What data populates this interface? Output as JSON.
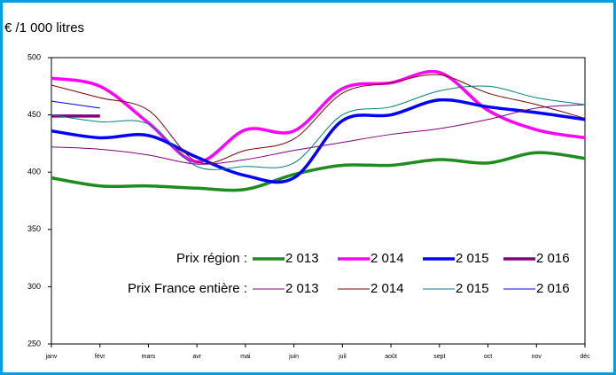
{
  "chart_data": {
    "type": "line",
    "title": "€ /1 000 litres",
    "categories": [
      "janv",
      "févr",
      "mars",
      "avr",
      "mai",
      "juin",
      "juil",
      "août",
      "sept",
      "oct",
      "nov",
      "déc"
    ],
    "ylim": [
      250,
      500
    ],
    "yticks": [
      250,
      300,
      350,
      400,
      450,
      500
    ],
    "series_groups": [
      {
        "label": "Prix région :",
        "series": [
          {
            "name": "2 013",
            "color": "#1e8c1e",
            "values": [
              395,
              388,
              388,
              386,
              385,
              398,
              406,
              406,
              411,
              408,
              417,
              412
            ]
          },
          {
            "name": "2 014",
            "color": "#ff00ff",
            "values": [
              482,
              475,
              443,
              409,
              437,
              436,
              473,
              478,
              487,
              454,
              437,
              430
            ]
          },
          {
            "name": "2 015",
            "color": "#0000ff",
            "values": [
              436,
              430,
              432,
              413,
              397,
              395,
              445,
              450,
              463,
              457,
              452,
              446
            ]
          },
          {
            "name": "2 016",
            "color": "#800080",
            "values": [
              449,
              449,
              null,
              null,
              null,
              null,
              null,
              null,
              null,
              null,
              null,
              null
            ]
          }
        ]
      },
      {
        "label": "Prix France entière :",
        "series": [
          {
            "name": "2 013",
            "color": "#800080",
            "values": [
              422,
              420,
              415,
              407,
              411,
              419,
              426,
              433,
              438,
              446,
              456,
              459
            ]
          },
          {
            "name": "2 014",
            "color": "#800000",
            "values": [
              476,
              465,
              454,
              409,
              419,
              429,
              469,
              478,
              485,
              469,
              459,
              447
            ]
          },
          {
            "name": "2 015",
            "color": "#008080",
            "values": [
              450,
              444,
              442,
              405,
              405,
              408,
              450,
              457,
              471,
              475,
              465,
              459
            ]
          },
          {
            "name": "2 016",
            "color": "#0000ff",
            "values": [
              462,
              456,
              null,
              null,
              null,
              null,
              null,
              null,
              null,
              null,
              null,
              null
            ]
          }
        ]
      }
    ]
  }
}
